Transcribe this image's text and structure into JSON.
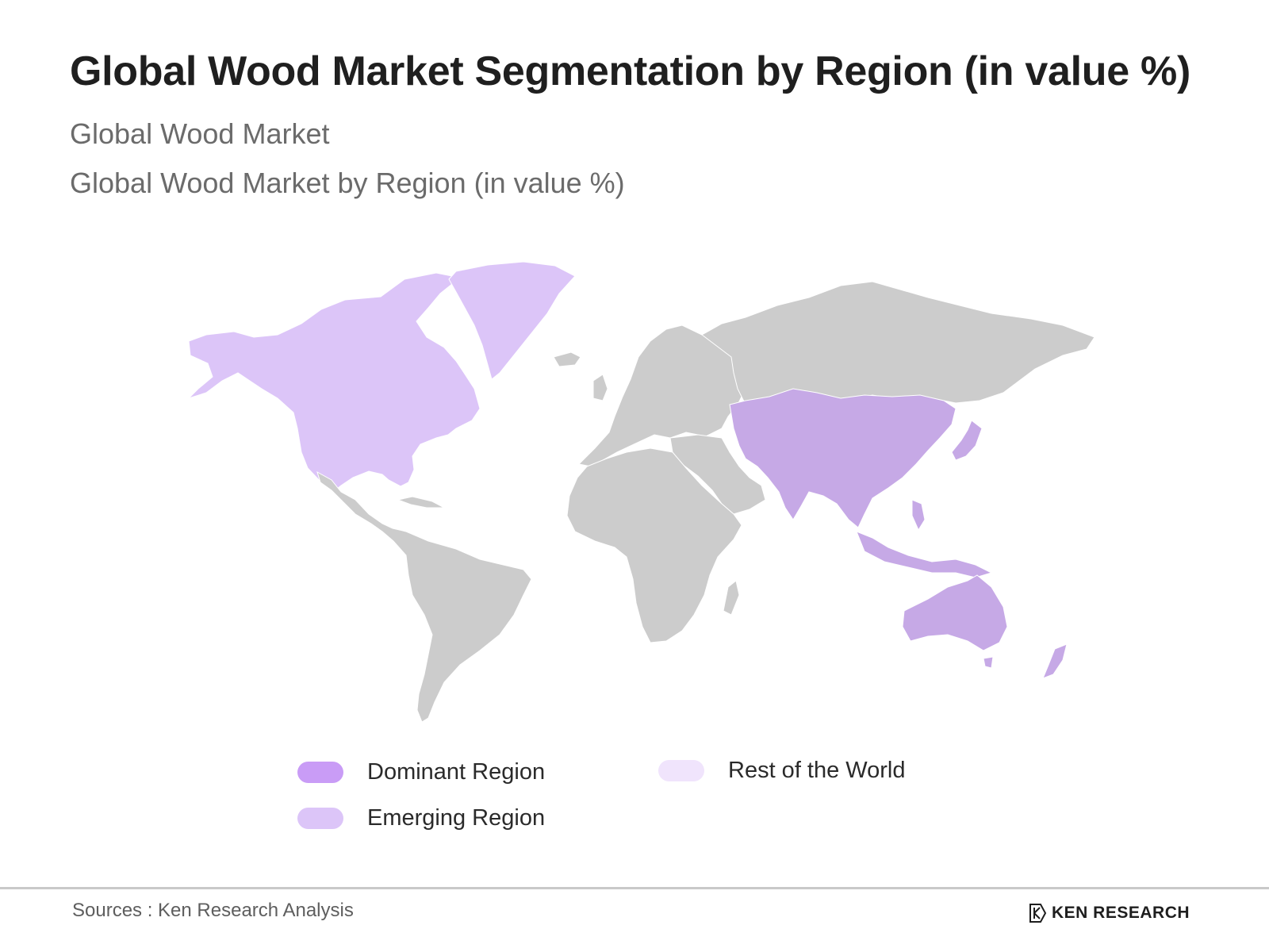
{
  "header": {
    "title": "Global Wood Market Segmentation by Region (in value %)",
    "subtitle_1": "Global Wood Market",
    "subtitle_2": "Global Wood Market by Region (in value %)"
  },
  "map": {
    "regions": [
      {
        "name": "North America",
        "category": "Emerging Region"
      },
      {
        "name": "Greenland",
        "category": "Emerging Region"
      },
      {
        "name": "Asia-Pacific",
        "category": "Dominant Region"
      },
      {
        "name": "Australia",
        "category": "Dominant Region"
      },
      {
        "name": "Latin America",
        "category": "Unclassified"
      },
      {
        "name": "Europe",
        "category": "Unclassified"
      },
      {
        "name": "Africa",
        "category": "Unclassified"
      },
      {
        "name": "Russia",
        "category": "Unclassified"
      },
      {
        "name": "Middle East",
        "category": "Unclassified"
      }
    ],
    "colors": {
      "dominant": "#c6a9e6",
      "emerging": "#dcc5f8",
      "rest": "#f0e4fc",
      "unclassified": "#cccccc",
      "legend_dominant": "#c99cf6"
    }
  },
  "legend": {
    "dominant": "Dominant Region",
    "emerging": "Emerging Region",
    "rest": "Rest of the World"
  },
  "footer": {
    "source": "Sources : Ken Research Analysis",
    "brand": "KEN RESEARCH"
  }
}
